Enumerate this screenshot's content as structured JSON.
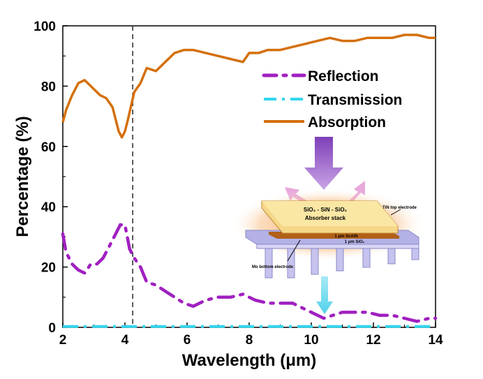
{
  "chart_data": {
    "type": "line",
    "xlabel": "Wavelength (μm)",
    "ylabel": "Percentage (%)",
    "xlim": [
      2,
      14
    ],
    "ylim": [
      0,
      100
    ],
    "xticks": [
      "2",
      "4",
      "6",
      "8",
      "10",
      "12",
      "14"
    ],
    "yticks": [
      "0",
      "20",
      "40",
      "60",
      "80",
      "100"
    ],
    "grid": false,
    "legend": "upper-right",
    "reference_line_x": 4.25,
    "series": [
      {
        "name": "Reflection",
        "style": "dash-dot",
        "color": "#a020c0",
        "x": [
          2.0,
          2.1,
          2.3,
          2.5,
          2.7,
          2.9,
          3.1,
          3.3,
          3.5,
          3.7,
          3.85,
          4.0,
          4.15,
          4.3,
          4.5,
          4.7,
          5.0,
          5.3,
          5.6,
          5.9,
          6.2,
          6.6,
          7.0,
          7.4,
          7.8,
          8.2,
          8.6,
          9.0,
          9.4,
          9.8,
          10.2,
          10.4,
          10.7,
          11.0,
          11.4,
          11.8,
          12.2,
          12.6,
          13.0,
          13.4,
          13.8,
          14.0
        ],
        "y": [
          31,
          25,
          21,
          19,
          18,
          21,
          21,
          23,
          27,
          31,
          34,
          34,
          26,
          23,
          20,
          15,
          14,
          12,
          10,
          8,
          7,
          9,
          10,
          10,
          11,
          9,
          8,
          8,
          8,
          6,
          4,
          3,
          4,
          5,
          5,
          5,
          4,
          4,
          3,
          2,
          3,
          3
        ]
      },
      {
        "name": "Transmission",
        "style": "dash-dot",
        "color": "#33d6ee",
        "x": [
          2,
          4,
          6,
          8,
          10,
          12,
          14
        ],
        "y": [
          0.3,
          0.3,
          0.3,
          0.3,
          0.3,
          0.3,
          0.3
        ]
      },
      {
        "name": "Absorption",
        "style": "solid",
        "color": "#d4700c",
        "x": [
          2.0,
          2.1,
          2.3,
          2.5,
          2.7,
          2.9,
          3.0,
          3.2,
          3.4,
          3.6,
          3.8,
          3.9,
          4.0,
          4.1,
          4.3,
          4.5,
          4.7,
          5.0,
          5.3,
          5.6,
          5.9,
          6.2,
          6.6,
          7.0,
          7.4,
          7.8,
          8.0,
          8.3,
          8.6,
          9.0,
          9.4,
          9.8,
          10.2,
          10.6,
          11.0,
          11.4,
          11.8,
          12.2,
          12.6,
          13.0,
          13.4,
          13.8,
          14.0
        ],
        "y": [
          68,
          72,
          77,
          81,
          82,
          80,
          79,
          77,
          76,
          73,
          65,
          63,
          65,
          69,
          78,
          81,
          86,
          85,
          88,
          91,
          92,
          92,
          91,
          90,
          89,
          88,
          91,
          91,
          92,
          92,
          93,
          94,
          95,
          96,
          95,
          95,
          96,
          96,
          96,
          97,
          97,
          96,
          96
        ]
      }
    ]
  },
  "inset": {
    "stack_line1": "SiO₂ - SiN - SiO₂",
    "stack_line2": "Absorber stack",
    "scaln_label": "1 μm ScAlN",
    "sio2_label": "1 μm SiO₂",
    "top_electrode": "TiN top electrode",
    "bottom_electrode": "Mo bottom electrode"
  }
}
